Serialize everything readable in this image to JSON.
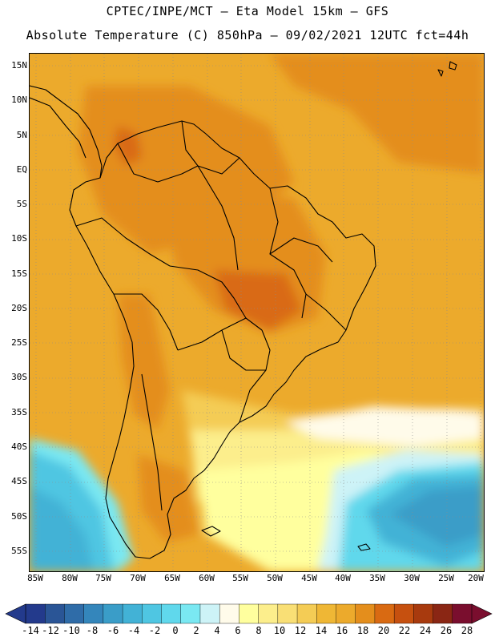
{
  "header": {
    "title_line1": "CPTEC/INPE/MCT –  Eta Model 15km – GFS",
    "title_line2": "Absolute Temperature (C) 850hPa – 09/02/2021 12UTC fct=44h"
  },
  "map": {
    "lat_labels": [
      "15N",
      "10N",
      "5N",
      "EQ",
      "5S",
      "10S",
      "15S",
      "20S",
      "25S",
      "30S",
      "35S",
      "40S",
      "45S",
      "50S",
      "55S"
    ],
    "lon_labels": [
      "85W",
      "80W",
      "75W",
      "70W",
      "65W",
      "60W",
      "55W",
      "50W",
      "45W",
      "40W",
      "35W",
      "30W",
      "25W",
      "20W"
    ]
  },
  "colorbar": {
    "labels": [
      "-14",
      "-12",
      "-10",
      "-8",
      "-6",
      "-4",
      "-2",
      "0",
      "2",
      "4",
      "6",
      "8",
      "10",
      "12",
      "14",
      "16",
      "18",
      "20",
      "22",
      "24",
      "26",
      "28"
    ],
    "low_color": "#233a8c",
    "high_color": "#7a0e2e",
    "colors": [
      "#233a8c",
      "#2a5596",
      "#2f6ca8",
      "#3486bb",
      "#3a9dc8",
      "#42b2d6",
      "#4fc6e2",
      "#60d8ec",
      "#7ae8f2",
      "#cdf3f7",
      "#fffbea",
      "#ffff9e",
      "#fcee8c",
      "#f9df75",
      "#f4cc55",
      "#efb735",
      "#ecaa2c",
      "#e48e1c",
      "#d96a12",
      "#c6500f",
      "#a83a0e",
      "#8a2614",
      "#7a0e2e"
    ]
  }
}
